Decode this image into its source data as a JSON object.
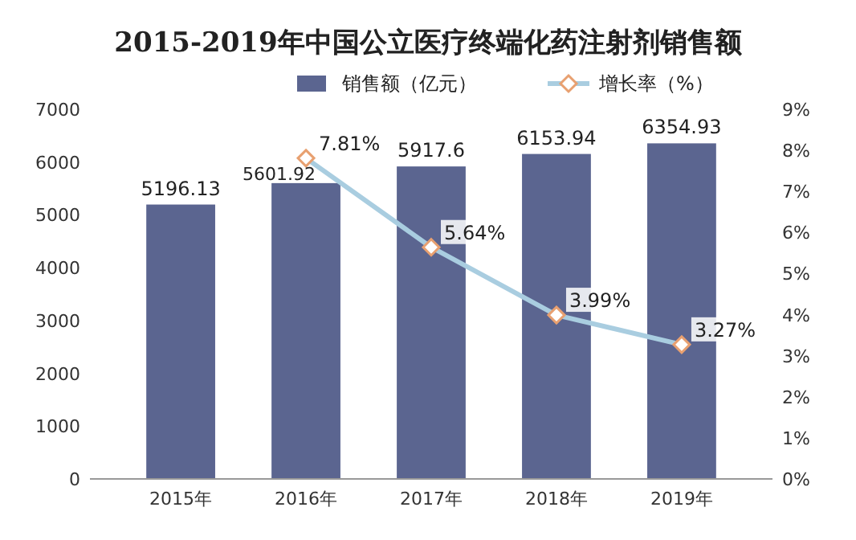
{
  "chart_data": {
    "type": "bar",
    "title": "2015-2019年中国公立医疗终端化药注射剂销售额",
    "categories": [
      "2015年",
      "2016年",
      "2017年",
      "2018年",
      "2019年"
    ],
    "series": [
      {
        "name": "销售额（亿元）",
        "color": "#5b6590",
        "values": [
          5196.13,
          5601.92,
          5917.6,
          6153.94,
          6354.93
        ],
        "value_labels": [
          "5196.13",
          "5601.92",
          "5917.6",
          "6153.94",
          "6354.93"
        ]
      },
      {
        "name": "增长率（%）",
        "type": "line",
        "axis": "y2",
        "color": "#a9cde0",
        "values": [
          null,
          7.81,
          5.64,
          3.99,
          3.27
        ],
        "value_labels": [
          null,
          "7.81%",
          "5.64%",
          "3.99%",
          "3.27%"
        ]
      }
    ],
    "ylim": [
      0,
      7000
    ],
    "yticks": [
      0,
      1000,
      2000,
      3000,
      4000,
      5000,
      6000,
      7000
    ],
    "y2lim": [
      0,
      9
    ],
    "y2ticks": [
      {
        "value": 0,
        "label": "0%"
      },
      {
        "value": 1,
        "label": "1%"
      },
      {
        "value": 2,
        "label": "2%"
      },
      {
        "value": 3,
        "label": "3%"
      },
      {
        "value": 4,
        "label": "4%"
      },
      {
        "value": 5,
        "label": "5%"
      },
      {
        "value": 6,
        "label": "6%"
      },
      {
        "value": 7,
        "label": "7%"
      },
      {
        "value": 8,
        "label": "8%"
      },
      {
        "value": 9,
        "label": "9%"
      }
    ],
    "legend": "top right",
    "marker": "diamond",
    "grid": false
  }
}
